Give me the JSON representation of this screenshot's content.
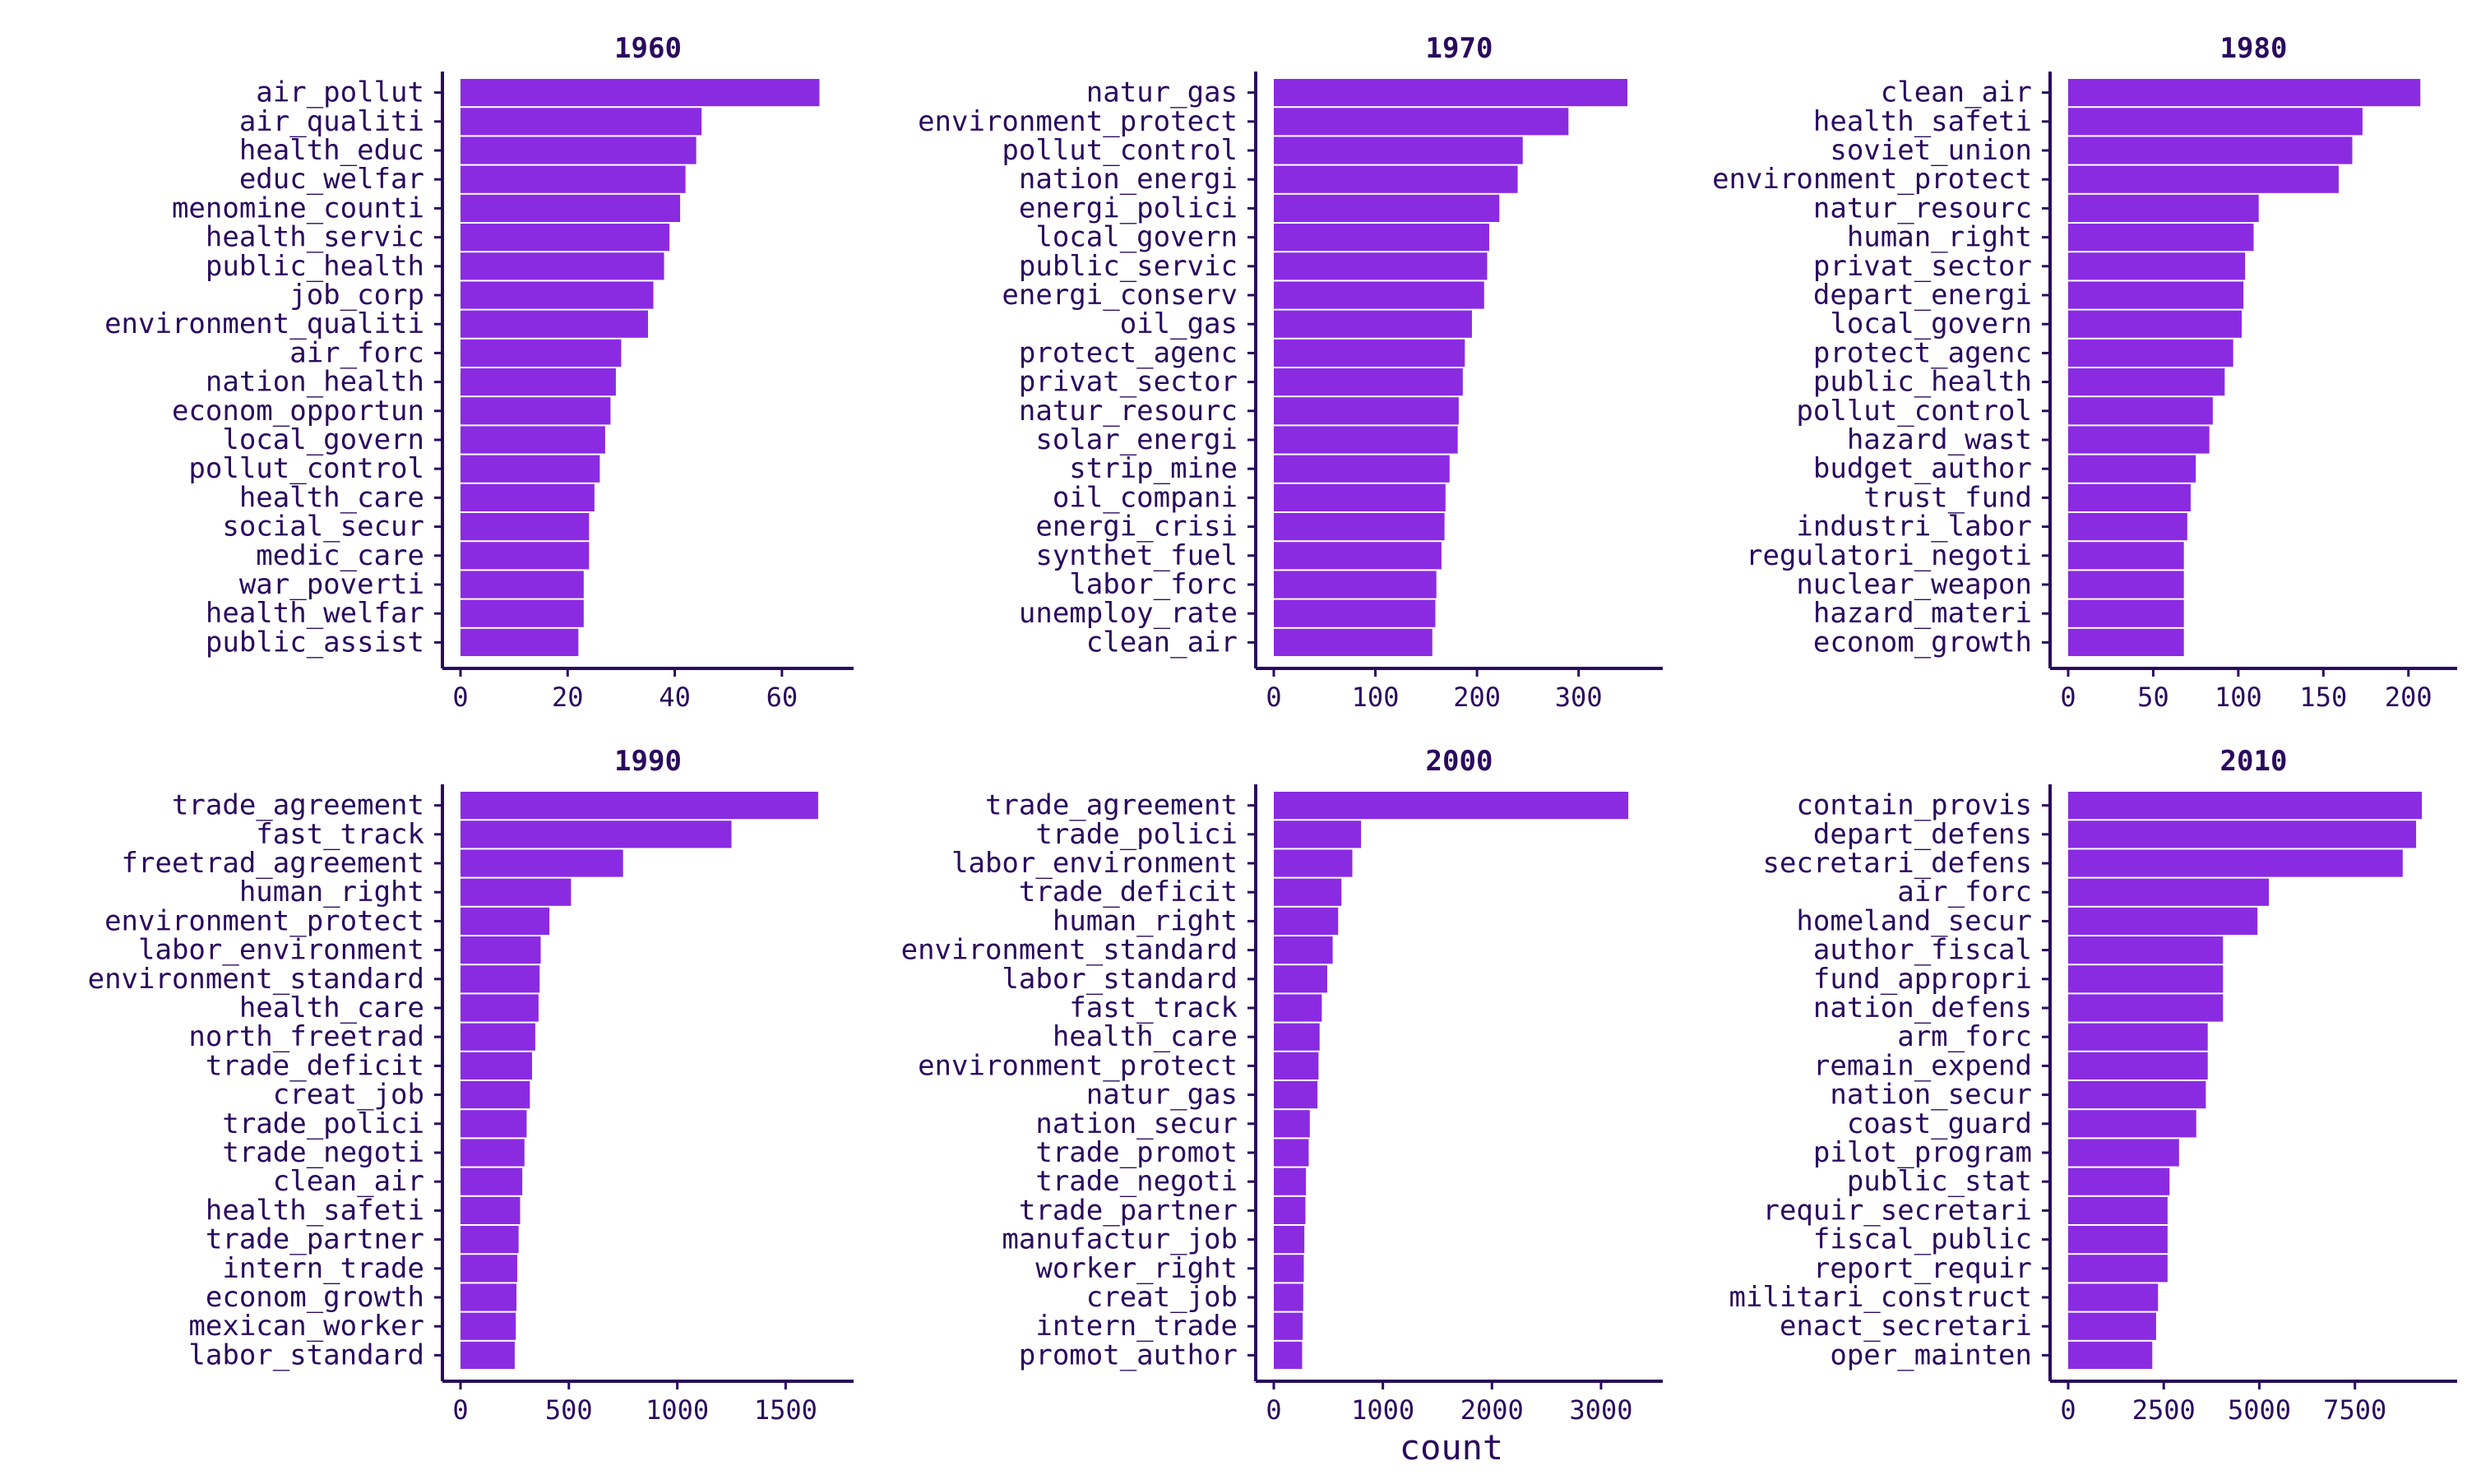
{
  "chart_data": {
    "type": "bar",
    "orientation": "horizontal",
    "xlabel": "count",
    "ylabel": "",
    "bar_color": "#8a2be2",
    "text_color": "#2a0a5e",
    "grid": false,
    "legend": "none",
    "panels": [
      {
        "title": "1960",
        "xlim": [
          0,
          70
        ],
        "ticks": [
          0,
          20,
          40,
          60
        ],
        "categories": [
          "air_pollut",
          "air_qualiti",
          "health_educ",
          "educ_welfar",
          "menomine_counti",
          "health_servic",
          "public_health",
          "job_corp",
          "environment_qualiti",
          "air_forc",
          "nation_health",
          "econom_opportun",
          "local_govern",
          "pollut_control",
          "health_care",
          "social_secur",
          "medic_care",
          "war_poverti",
          "health_welfar",
          "public_assist"
        ],
        "values": [
          67,
          45,
          44,
          42,
          41,
          39,
          38,
          36,
          35,
          30,
          29,
          28,
          27,
          26,
          25,
          24,
          24,
          23,
          23,
          22
        ]
      },
      {
        "title": "1970",
        "xlim": [
          0,
          365
        ],
        "ticks": [
          0,
          100,
          200,
          300
        ],
        "categories": [
          "natur_gas",
          "environment_protect",
          "pollut_control",
          "nation_energi",
          "energi_polici",
          "local_govern",
          "public_servic",
          "energi_conserv",
          "oil_gas",
          "protect_agenc",
          "privat_sector",
          "natur_resourc",
          "solar_energi",
          "strip_mine",
          "oil_compani",
          "energi_crisi",
          "synthet_fuel",
          "labor_forc",
          "unemploy_rate",
          "clean_air"
        ],
        "values": [
          348,
          290,
          245,
          240,
          222,
          212,
          210,
          207,
          195,
          188,
          186,
          182,
          181,
          173,
          169,
          168,
          165,
          160,
          159,
          156
        ]
      },
      {
        "title": "1980",
        "xlim": [
          0,
          218
        ],
        "ticks": [
          0,
          50,
          100,
          150,
          200
        ],
        "categories": [
          "clean_air",
          "health_safeti",
          "soviet_union",
          "environment_protect",
          "natur_resourc",
          "human_right",
          "privat_sector",
          "depart_energi",
          "local_govern",
          "protect_agenc",
          "public_health",
          "pollut_control",
          "hazard_wast",
          "budget_author",
          "trust_fund",
          "industri_labor",
          "regulatori_negoti",
          "nuclear_weapon",
          "hazard_materi",
          "econom_growth"
        ],
        "values": [
          207,
          173,
          167,
          159,
          112,
          109,
          104,
          103,
          102,
          97,
          92,
          85,
          83,
          75,
          72,
          70,
          68,
          68,
          68,
          68
        ]
      },
      {
        "title": "1990",
        "xlim": [
          0,
          1730
        ],
        "ticks": [
          0,
          500,
          1000,
          1500
        ],
        "categories": [
          "trade_agreement",
          "fast_track",
          "freetrad_agreement",
          "human_right",
          "environment_protect",
          "labor_environment",
          "environment_standard",
          "health_care",
          "north_freetrad",
          "trade_deficit",
          "creat_job",
          "trade_polici",
          "trade_negoti",
          "clean_air",
          "health_safeti",
          "trade_partner",
          "intern_trade",
          "econom_growth",
          "mexican_worker",
          "labor_standard"
        ],
        "values": [
          1650,
          1250,
          750,
          510,
          410,
          370,
          365,
          360,
          345,
          330,
          320,
          305,
          295,
          285,
          275,
          268,
          262,
          258,
          255,
          250
        ]
      },
      {
        "title": "2000",
        "xlim": [
          0,
          3400
        ],
        "ticks": [
          0,
          1000,
          2000,
          3000
        ],
        "categories": [
          "trade_agreement",
          "trade_polici",
          "labor_environment",
          "trade_deficit",
          "human_right",
          "environment_standard",
          "labor_standard",
          "fast_track",
          "health_care",
          "environment_protect",
          "natur_gas",
          "nation_secur",
          "trade_promot",
          "trade_negoti",
          "trade_partner",
          "manufactur_job",
          "worker_right",
          "creat_job",
          "intern_trade",
          "promot_author"
        ],
        "values": [
          3250,
          800,
          720,
          620,
          590,
          540,
          490,
          440,
          420,
          410,
          400,
          330,
          320,
          295,
          290,
          280,
          275,
          270,
          265,
          260
        ]
      },
      {
        "title": "2010",
        "xlim": [
          0,
          9700
        ],
        "ticks": [
          0,
          2500,
          5000,
          7500
        ],
        "categories": [
          "contain_provis",
          "depart_defens",
          "secretari_defens",
          "air_forc",
          "homeland_secur",
          "author_fiscal",
          "fund_appropri",
          "nation_defens",
          "arm_forc",
          "remain_expend",
          "nation_secur",
          "coast_guard",
          "pilot_program",
          "public_stat",
          "requir_secretari",
          "fiscal_public",
          "report_requir",
          "militari_construct",
          "enact_secretari",
          "oper_mainten"
        ],
        "values": [
          9250,
          9100,
          8750,
          5250,
          4950,
          4050,
          4050,
          4050,
          3650,
          3650,
          3600,
          3350,
          2900,
          2650,
          2600,
          2600,
          2600,
          2350,
          2300,
          2200
        ]
      }
    ]
  }
}
